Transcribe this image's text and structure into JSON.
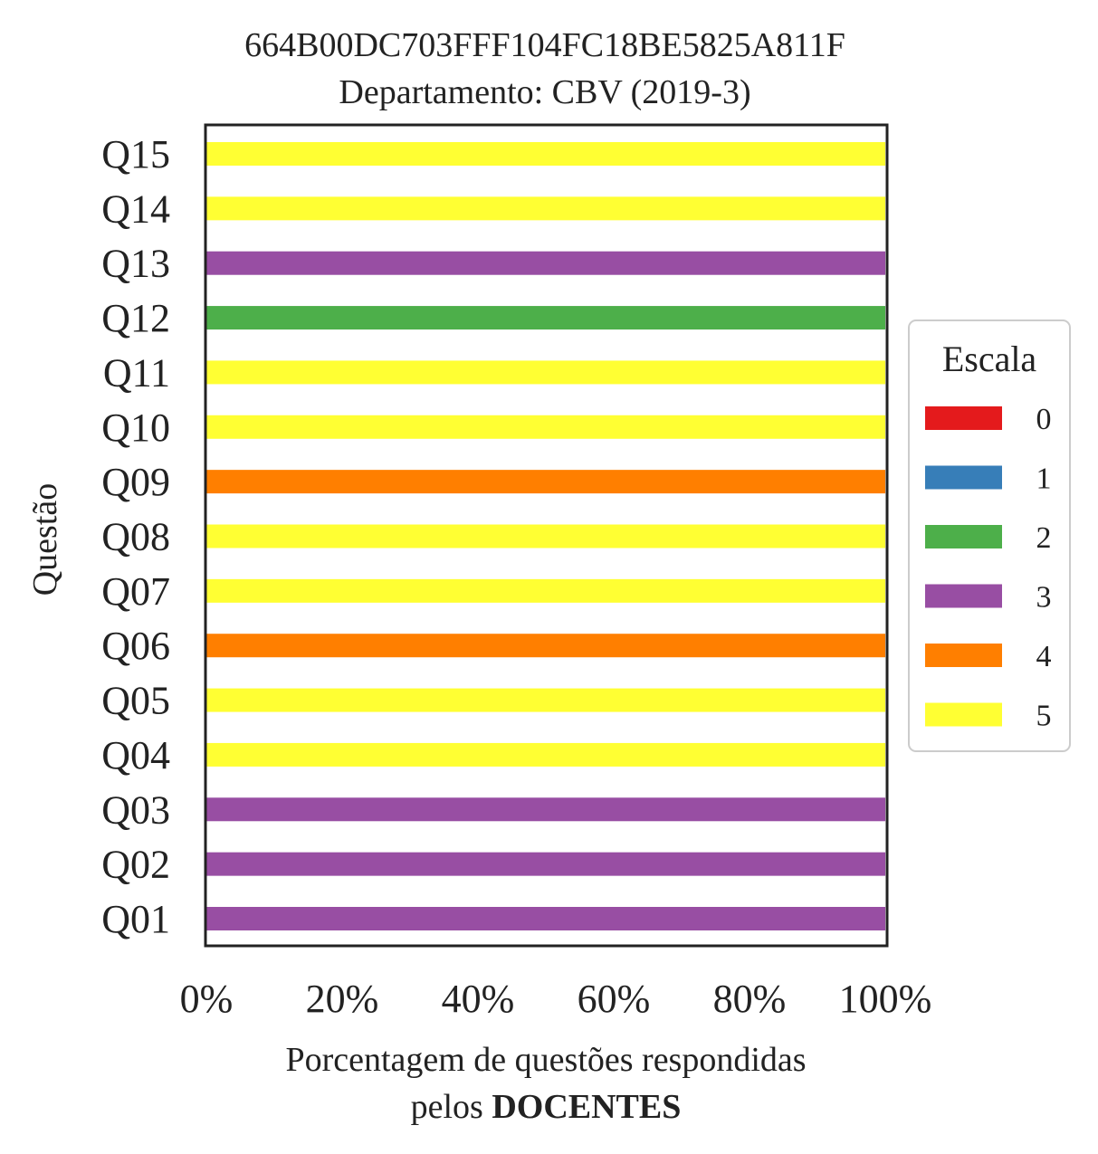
{
  "chart_data": {
    "type": "bar",
    "orientation": "horizontal",
    "stacked": true,
    "title": "664B00DC703FFF104FC18BE5825A811F",
    "subtitle": "Departamento: CBV (2019-3)",
    "ylabel": "Questão",
    "xlabel_line1": "Porcentagem de questões respondidas",
    "xlabel_line2_prefix": "pelos ",
    "xlabel_line2_bold": "DOCENTES",
    "xlim": [
      0,
      100
    ],
    "xticks": [
      "0%",
      "20%",
      "40%",
      "60%",
      "80%",
      "100%"
    ],
    "xtick_values": [
      0,
      20,
      40,
      60,
      80,
      100
    ],
    "categories": [
      "Q01",
      "Q02",
      "Q03",
      "Q04",
      "Q05",
      "Q06",
      "Q07",
      "Q08",
      "Q09",
      "Q10",
      "Q11",
      "Q12",
      "Q13",
      "Q14",
      "Q15"
    ],
    "series": [
      {
        "name": "0",
        "color": "#e41a1c",
        "values": [
          0,
          0,
          0,
          0,
          0,
          0,
          0,
          0,
          0,
          0,
          0,
          0,
          0,
          0,
          0
        ]
      },
      {
        "name": "1",
        "color": "#377eb8",
        "values": [
          0,
          0,
          0,
          0,
          0,
          0,
          0,
          0,
          0,
          0,
          0,
          0,
          0,
          0,
          0
        ]
      },
      {
        "name": "2",
        "color": "#4daf4a",
        "values": [
          0,
          0,
          0,
          0,
          0,
          0,
          0,
          0,
          0,
          0,
          0,
          100,
          0,
          0,
          0
        ]
      },
      {
        "name": "3",
        "color": "#984ea3",
        "values": [
          100,
          100,
          100,
          0,
          0,
          0,
          0,
          0,
          0,
          0,
          0,
          0,
          100,
          0,
          0
        ]
      },
      {
        "name": "4",
        "color": "#ff7f00",
        "values": [
          0,
          0,
          0,
          0,
          0,
          100,
          0,
          0,
          100,
          0,
          0,
          0,
          0,
          0,
          0
        ]
      },
      {
        "name": "5",
        "color": "#ffff33",
        "values": [
          0,
          0,
          0,
          100,
          100,
          0,
          100,
          100,
          0,
          100,
          100,
          0,
          0,
          100,
          100
        ]
      }
    ],
    "legend": {
      "title": "Escala",
      "placement": "right"
    },
    "grid": false
  }
}
